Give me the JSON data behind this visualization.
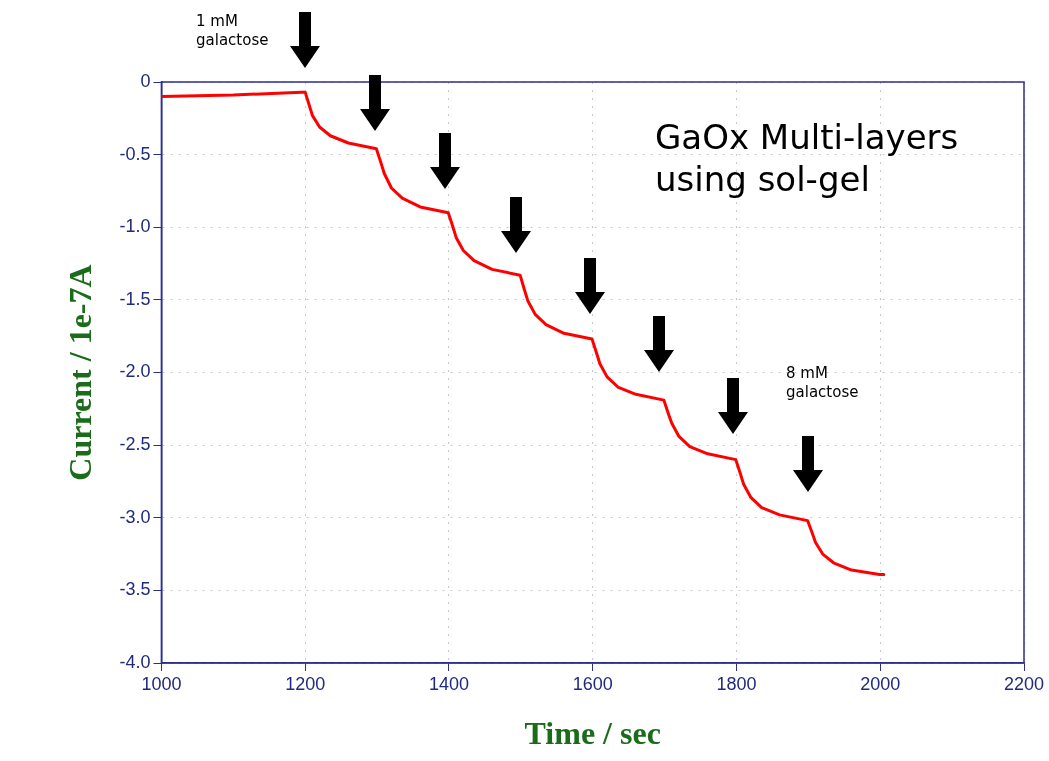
{
  "chart_data": {
    "type": "line",
    "xlabel": "Time / sec",
    "ylabel": "Current / 1e-7A",
    "annotations": [
      "1 mM\ngalactose",
      "GaOx Multi-layers\nusing sol-gel",
      "8 mM\ngalactose"
    ],
    "series": [
      {
        "color": "#ff0000",
        "x": [
          1000,
          1100,
          1195,
          1200,
          1205,
          1210,
          1220,
          1235,
          1260,
          1299,
          1305,
          1310,
          1320,
          1335,
          1360,
          1399,
          1405,
          1410,
          1420,
          1435,
          1460,
          1499,
          1505,
          1510,
          1520,
          1535,
          1560,
          1599,
          1605,
          1610,
          1620,
          1635,
          1660,
          1699,
          1705,
          1710,
          1720,
          1735,
          1760,
          1799,
          1805,
          1810,
          1820,
          1835,
          1860,
          1899,
          1905,
          1910,
          1920,
          1935,
          1960,
          1999,
          2005
        ],
        "values": [
          -0.1,
          -0.09,
          -0.07,
          -0.07,
          -0.15,
          -0.23,
          -0.31,
          -0.37,
          -0.42,
          -0.46,
          -0.55,
          -0.63,
          -0.73,
          -0.8,
          -0.86,
          -0.9,
          -0.99,
          -1.07,
          -1.16,
          -1.23,
          -1.29,
          -1.33,
          -1.43,
          -1.51,
          -1.6,
          -1.67,
          -1.73,
          -1.77,
          -1.86,
          -1.94,
          -2.03,
          -2.1,
          -2.15,
          -2.19,
          -2.28,
          -2.35,
          -2.44,
          -2.51,
          -2.56,
          -2.6,
          -2.69,
          -2.77,
          -2.86,
          -2.93,
          -2.98,
          -3.02,
          -3.1,
          -3.17,
          -3.25,
          -3.31,
          -3.36,
          -3.39,
          -3.39
        ]
      }
    ],
    "xlim": [
      1000,
      2200
    ],
    "xticks": [
      1000,
      1200,
      1400,
      1600,
      1800,
      2000,
      2200
    ],
    "ylim": [
      -4.0,
      0
    ],
    "yticks": [
      0,
      -0.5,
      {
        "value": -1.0,
        "label": "-1.0"
      },
      -1.5,
      {
        "value": -2.0,
        "label": "-2.0"
      },
      -2.5,
      {
        "value": -3.0,
        "label": "-3.0"
      },
      -3.5,
      {
        "value": -4.0,
        "label": "-4.0"
      }
    ],
    "grid": true,
    "marker": "none",
    "line_style": "solid",
    "legend": false
  }
}
